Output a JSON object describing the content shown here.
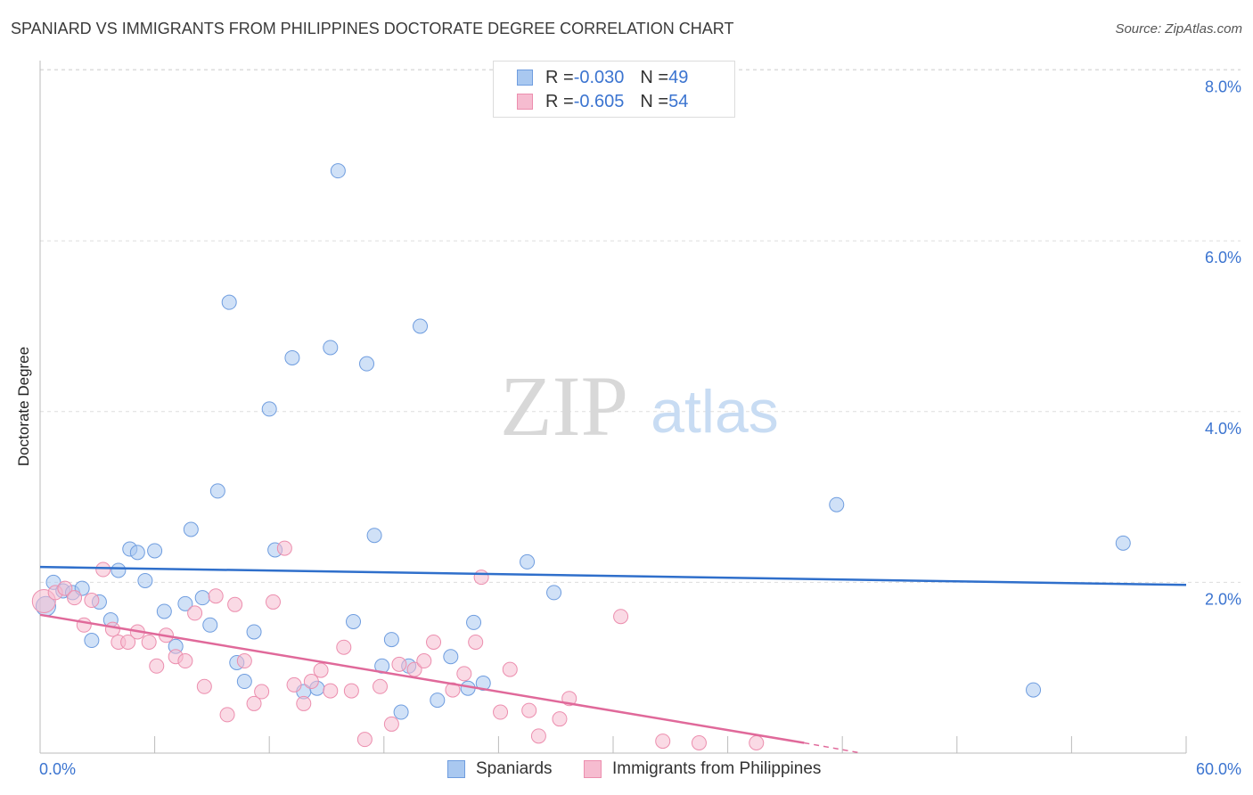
{
  "header": {
    "title": "SPANIARD VS IMMIGRANTS FROM PHILIPPINES DOCTORATE DEGREE CORRELATION CHART",
    "source": "Source: ZipAtlas.com"
  },
  "watermark": {
    "zip": "ZIP",
    "atlas": "atlas"
  },
  "legend": {
    "rows": [
      {
        "r_label": "R = ",
        "r_value": "-0.030",
        "n_label": "N = ",
        "n_value": "49"
      },
      {
        "r_label": "R = ",
        "r_value": "-0.605",
        "n_label": "N = ",
        "n_value": "54"
      }
    ]
  },
  "colors": {
    "spaniards_fill": "#a9c8f0",
    "spaniards_stroke": "#6f9ddf",
    "spaniards_line": "#2f6fcb",
    "philippines_fill": "#f6bcd0",
    "philippines_stroke": "#ec8eae",
    "philippines_line": "#e0699a",
    "axis_label": "#3b74d0",
    "grid": "#dddddd"
  },
  "chart_data": {
    "type": "scatter",
    "title": "SPANIARD VS IMMIGRANTS FROM PHILIPPINES DOCTORATE DEGREE CORRELATION CHART",
    "xlabel": "",
    "ylabel": "Doctorate Degree",
    "xlim": [
      0,
      60
    ],
    "ylim": [
      0,
      8.2
    ],
    "x_tick_labels": [
      "0.0%",
      "60.0%"
    ],
    "y_ticks": [
      2.0,
      4.0,
      6.0,
      8.0
    ],
    "y_tick_labels": [
      "2.0%",
      "4.0%",
      "6.0%",
      "8.0%"
    ],
    "grid": true,
    "legend_position": "top-center",
    "series": [
      {
        "name": "Spaniards",
        "r": -0.03,
        "n": 49,
        "trend": {
          "x": [
            0,
            60
          ],
          "y": [
            2.18,
            1.97
          ]
        },
        "points": [
          [
            0.3,
            1.72
          ],
          [
            0.7,
            2.0
          ],
          [
            1.2,
            1.9
          ],
          [
            1.7,
            1.88
          ],
          [
            2.2,
            1.93
          ],
          [
            2.7,
            1.32
          ],
          [
            3.1,
            1.77
          ],
          [
            3.7,
            1.56
          ],
          [
            4.1,
            2.14
          ],
          [
            4.7,
            2.39
          ],
          [
            5.1,
            2.35
          ],
          [
            5.5,
            2.02
          ],
          [
            6.0,
            2.37
          ],
          [
            6.5,
            1.66
          ],
          [
            7.1,
            1.25
          ],
          [
            7.6,
            1.75
          ],
          [
            7.9,
            2.62
          ],
          [
            8.5,
            1.82
          ],
          [
            8.9,
            1.5
          ],
          [
            9.3,
            3.07
          ],
          [
            9.9,
            5.28
          ],
          [
            10.3,
            1.06
          ],
          [
            10.7,
            0.84
          ],
          [
            11.2,
            1.42
          ],
          [
            12.0,
            4.03
          ],
          [
            12.3,
            2.38
          ],
          [
            13.2,
            4.63
          ],
          [
            13.8,
            0.72
          ],
          [
            14.5,
            0.76
          ],
          [
            15.2,
            4.75
          ],
          [
            15.6,
            6.82
          ],
          [
            16.4,
            1.54
          ],
          [
            17.1,
            4.56
          ],
          [
            17.5,
            2.55
          ],
          [
            17.9,
            1.02
          ],
          [
            18.4,
            1.33
          ],
          [
            18.9,
            0.48
          ],
          [
            19.3,
            1.02
          ],
          [
            19.9,
            5.0
          ],
          [
            20.8,
            0.62
          ],
          [
            21.5,
            1.13
          ],
          [
            22.4,
            0.76
          ],
          [
            22.7,
            1.53
          ],
          [
            23.2,
            0.82
          ],
          [
            25.5,
            2.24
          ],
          [
            26.9,
            1.88
          ],
          [
            41.7,
            2.91
          ],
          [
            52.0,
            0.74
          ],
          [
            56.7,
            2.46
          ]
        ]
      },
      {
        "name": "Immigrants from Philippines",
        "r": -0.605,
        "n": 54,
        "trend": {
          "x": [
            0,
            40
          ],
          "y": [
            1.62,
            0.12
          ]
        },
        "trend_dashed": {
          "x": [
            40,
            43
          ],
          "y": [
            0.12,
            0.0
          ]
        },
        "points": [
          [
            0.2,
            1.78
          ],
          [
            0.8,
            1.88
          ],
          [
            1.3,
            1.93
          ],
          [
            1.8,
            1.82
          ],
          [
            2.3,
            1.5
          ],
          [
            2.7,
            1.79
          ],
          [
            3.3,
            2.15
          ],
          [
            3.8,
            1.45
          ],
          [
            4.1,
            1.3
          ],
          [
            4.6,
            1.3
          ],
          [
            5.1,
            1.42
          ],
          [
            5.7,
            1.3
          ],
          [
            6.1,
            1.02
          ],
          [
            6.6,
            1.38
          ],
          [
            7.1,
            1.13
          ],
          [
            7.6,
            1.08
          ],
          [
            8.1,
            1.64
          ],
          [
            8.6,
            0.78
          ],
          [
            9.2,
            1.84
          ],
          [
            9.8,
            0.45
          ],
          [
            10.2,
            1.74
          ],
          [
            10.7,
            1.08
          ],
          [
            11.2,
            0.58
          ],
          [
            11.6,
            0.72
          ],
          [
            12.2,
            1.77
          ],
          [
            12.8,
            2.4
          ],
          [
            13.3,
            0.8
          ],
          [
            13.8,
            0.58
          ],
          [
            14.2,
            0.84
          ],
          [
            14.7,
            0.97
          ],
          [
            15.2,
            0.73
          ],
          [
            15.9,
            1.24
          ],
          [
            16.3,
            0.73
          ],
          [
            17.0,
            0.16
          ],
          [
            17.8,
            0.78
          ],
          [
            18.4,
            0.34
          ],
          [
            18.8,
            1.04
          ],
          [
            19.6,
            0.98
          ],
          [
            20.1,
            1.08
          ],
          [
            20.6,
            1.3
          ],
          [
            21.6,
            0.74
          ],
          [
            22.2,
            0.93
          ],
          [
            22.8,
            1.3
          ],
          [
            23.1,
            2.06
          ],
          [
            24.1,
            0.48
          ],
          [
            24.6,
            0.98
          ],
          [
            25.6,
            0.5
          ],
          [
            26.1,
            0.2
          ],
          [
            27.2,
            0.4
          ],
          [
            27.7,
            0.64
          ],
          [
            30.4,
            1.6
          ],
          [
            32.6,
            0.14
          ],
          [
            34.5,
            0.12
          ],
          [
            37.5,
            0.12
          ]
        ]
      }
    ]
  },
  "bottom_legend": {
    "items": [
      {
        "label": "Spaniards"
      },
      {
        "label": "Immigrants from Philippines"
      }
    ]
  }
}
